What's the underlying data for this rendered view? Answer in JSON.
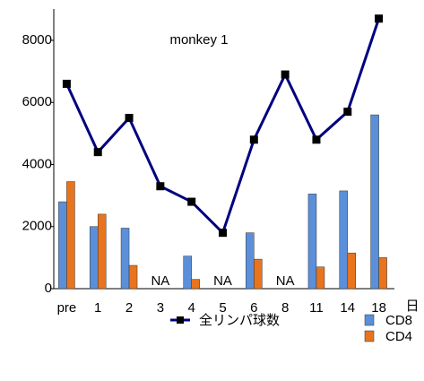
{
  "chart_data": {
    "type": "bar_line",
    "categories": [
      "pre",
      "1",
      "2",
      "3",
      "4",
      "5",
      "6",
      "8",
      "11",
      "14",
      "18"
    ],
    "xlabel": "日",
    "series": [
      {
        "name": "全リンパ球数",
        "type": "line",
        "color": "#000080",
        "values": [
          6600,
          4400,
          5500,
          3300,
          2800,
          1800,
          4800,
          6900,
          4800,
          5700,
          8700
        ]
      },
      {
        "name": "CD8",
        "type": "bar",
        "color": "#5b8fd9",
        "values": [
          2800,
          2000,
          1950,
          null,
          1050,
          null,
          1800,
          null,
          3050,
          3150,
          5600
        ]
      },
      {
        "name": "CD4",
        "type": "bar",
        "color": "#e8741e",
        "values": [
          3450,
          2400,
          750,
          null,
          300,
          null,
          950,
          null,
          700,
          1150,
          1000
        ]
      }
    ],
    "annotations": [
      {
        "text": "monkey 1"
      },
      {
        "text": "NA",
        "x": "3"
      },
      {
        "text": "NA",
        "x": "5"
      },
      {
        "text": "NA",
        "x": "8"
      }
    ],
    "ylim": [
      0,
      8000
    ],
    "yticks": [
      0,
      2000,
      4000,
      6000,
      8000
    ]
  }
}
